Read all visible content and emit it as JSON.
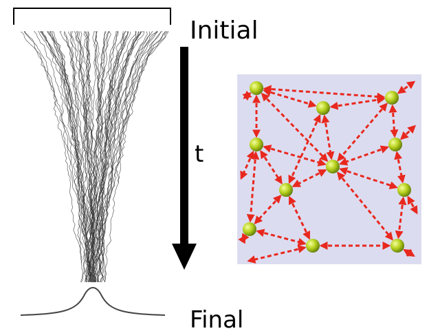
{
  "labels": {
    "initial": "Initial",
    "time": "t",
    "final": "Final"
  }
}
